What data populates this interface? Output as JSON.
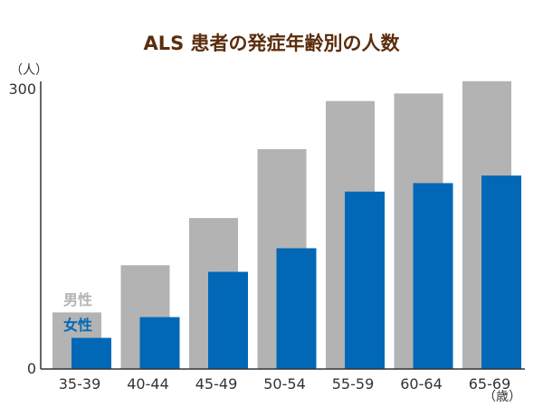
{
  "colors": {
    "title": "#5a2d0c",
    "male": "#b3b3b3",
    "female": "#0068b7",
    "axis": "#333333",
    "text": "#333333"
  },
  "chart_data": {
    "type": "bar",
    "title": "ALS 患者の発症年齢別の人数",
    "y_unit": "（人）",
    "x_unit": "（歳）",
    "ylim": [
      0,
      300
    ],
    "yticks": [
      "0",
      "300"
    ],
    "grid": false,
    "legend_position": "bottom-left",
    "categories": [
      "35-39",
      "40-44",
      "45-49",
      "50-54",
      "55-59",
      "60-64",
      "65-69"
    ],
    "series": [
      {
        "name": "男性",
        "color": "#b3b3b3",
        "values": [
          60,
          110,
          160,
          233,
          284,
          292,
          305
        ]
      },
      {
        "name": "女性",
        "color": "#0068b7",
        "values": [
          33,
          55,
          103,
          128,
          188,
          197,
          205
        ]
      }
    ]
  }
}
